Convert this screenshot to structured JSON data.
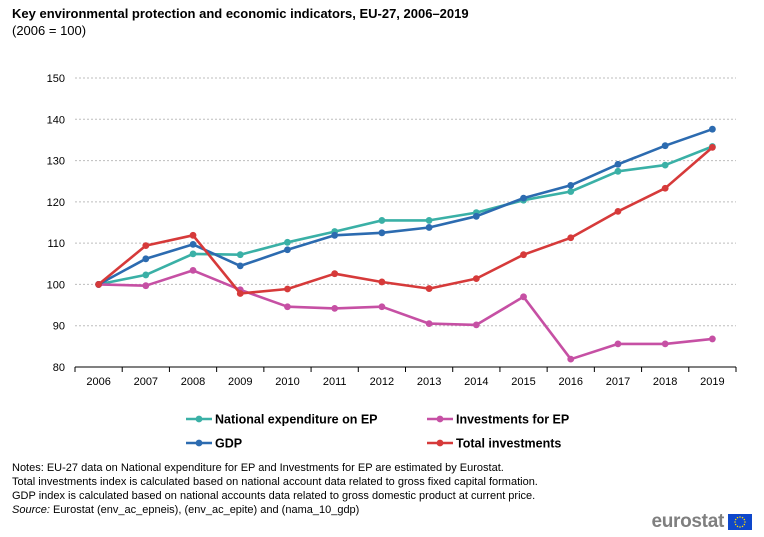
{
  "header": {
    "title": "Key environmental protection and economic indicators,  EU-27, 2006–2019",
    "subtitle": "(2006 = 100)"
  },
  "chart_data": {
    "type": "line",
    "title": "Key environmental protection and economic indicators,  EU-27, 2006–2019",
    "subtitle": "(2006 = 100)",
    "xlabel": "",
    "ylabel": "",
    "x": [
      "2006",
      "2007",
      "2008",
      "2009",
      "2010",
      "2011",
      "2012",
      "2013",
      "2014",
      "2015",
      "2016",
      "2017",
      "2018",
      "2019"
    ],
    "ylim": [
      80,
      150
    ],
    "yticks": [
      80,
      90,
      100,
      110,
      120,
      130,
      140,
      150
    ],
    "grid": true,
    "legend_position": "bottom",
    "series": [
      {
        "name": "National expenditure on EP",
        "color": "#3ab0a6",
        "values": [
          100,
          102.3,
          107.4,
          107.2,
          110.2,
          112.8,
          115.5,
          115.5,
          117.4,
          120.4,
          122.5,
          127.4,
          128.9,
          133.4
        ]
      },
      {
        "name": "Investments for EP",
        "color": "#c650a4",
        "values": [
          100,
          99.7,
          103.4,
          98.7,
          94.6,
          94.2,
          94.6,
          90.5,
          90.2,
          97.0,
          81.9,
          85.6,
          85.6,
          86.8
        ]
      },
      {
        "name": "GDP",
        "color": "#2c6bb0",
        "values": [
          100,
          106.2,
          109.7,
          104.5,
          108.4,
          111.9,
          112.5,
          113.8,
          116.5,
          120.9,
          124.0,
          129.1,
          133.6,
          137.6
        ]
      },
      {
        "name": "Total investments",
        "color": "#d63a3a",
        "values": [
          100,
          109.4,
          111.9,
          97.8,
          98.9,
          102.6,
          100.6,
          99.0,
          101.4,
          107.2,
          111.3,
          117.7,
          123.3,
          133.2
        ]
      }
    ]
  },
  "notes": {
    "line1": "Notes: EU-27 data on National expenditure for EP and Investments for EP are estimated by Eurostat.",
    "line2": "Total investments index is calculated based on national account data related to gross fixed capital formation.",
    "line3": "GDP index is calculated based on national accounts data related to gross domestic product at current price.",
    "source_label": "Source:",
    "source_text": " Eurostat (env_ac_epneis), (env_ac_epite) and (nama_10_gdp)"
  },
  "logo": {
    "text": "eurostat",
    "flag_icon": "eu-flag-icon",
    "flag_color": "#0e47cb",
    "star_color": "#ffdd00"
  }
}
